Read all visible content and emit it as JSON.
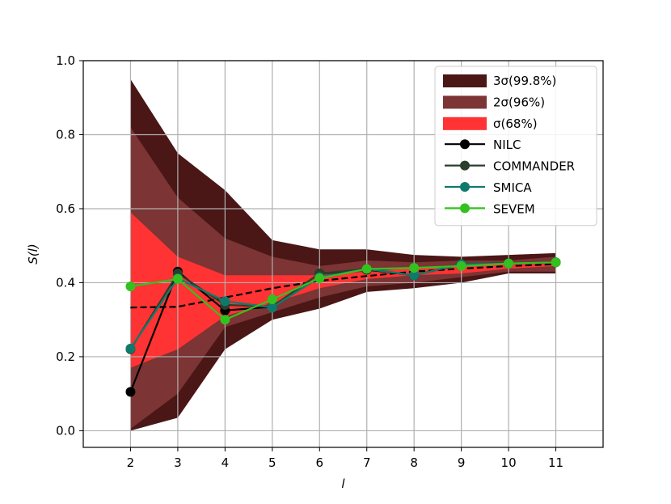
{
  "chart_data": {
    "type": "line",
    "xlabel": "l",
    "ylabel": "S(l)",
    "x": [
      2,
      3,
      4,
      5,
      6,
      7,
      8,
      9,
      10,
      11
    ],
    "xlim": [
      1,
      12
    ],
    "ylim": [
      -0.045,
      1.0
    ],
    "x_ticks": [
      "2",
      "3",
      "4",
      "5",
      "6",
      "7",
      "8",
      "9",
      "10",
      "11"
    ],
    "y_ticks": [
      "0.0",
      "0.2",
      "0.4",
      "0.6",
      "0.8",
      "1.0"
    ],
    "y_tick_values": [
      0.0,
      0.2,
      0.4,
      0.6,
      0.8,
      1.0
    ],
    "grid": true,
    "legend_position": "top-right",
    "mean": [
      0.333,
      0.335,
      0.36,
      0.385,
      0.405,
      0.418,
      0.43,
      0.438,
      0.445,
      0.45
    ],
    "bands": [
      {
        "name": "3σ(99.8%)",
        "color": "#4a1616",
        "lower": [
          0.0,
          0.035,
          0.22,
          0.3,
          0.33,
          0.375,
          0.385,
          0.4,
          0.425,
          0.425
        ],
        "upper": [
          0.95,
          0.75,
          0.65,
          0.515,
          0.49,
          0.49,
          0.475,
          0.47,
          0.475,
          0.48
        ]
      },
      {
        "name": "2σ(96%)",
        "color": "#7c3434",
        "lower": [
          0.005,
          0.1,
          0.28,
          0.32,
          0.36,
          0.39,
          0.4,
          0.415,
          0.43,
          0.43
        ],
        "upper": [
          0.82,
          0.63,
          0.52,
          0.47,
          0.445,
          0.46,
          0.455,
          0.46,
          0.46,
          0.47
        ]
      },
      {
        "name": "σ(68%)",
        "color": "#ff3333",
        "lower": [
          0.17,
          0.22,
          0.31,
          0.345,
          0.385,
          0.41,
          0.42,
          0.425,
          0.438,
          0.445
        ],
        "upper": [
          0.59,
          0.47,
          0.42,
          0.42,
          0.42,
          0.43,
          0.44,
          0.445,
          0.45,
          0.455
        ]
      }
    ],
    "series": [
      {
        "name": "NILC",
        "color": "#000000",
        "values": [
          0.105,
          0.43,
          0.325,
          0.335,
          0.425,
          0.435,
          0.42,
          0.45,
          0.452,
          0.455
        ]
      },
      {
        "name": "COMMANDER",
        "color": "#2b3e2b",
        "values": [
          0.22,
          0.425,
          0.34,
          0.335,
          0.425,
          0.437,
          0.42,
          0.45,
          0.452,
          0.455
        ]
      },
      {
        "name": "SMICA",
        "color": "#0f7a6c",
        "values": [
          0.222,
          0.412,
          0.35,
          0.333,
          0.415,
          0.437,
          0.42,
          0.45,
          0.452,
          0.455
        ]
      },
      {
        "name": "SEVEM",
        "color": "#33c11f",
        "values": [
          0.39,
          0.41,
          0.3,
          0.355,
          0.412,
          0.437,
          0.44,
          0.445,
          0.452,
          0.455
        ]
      }
    ]
  }
}
